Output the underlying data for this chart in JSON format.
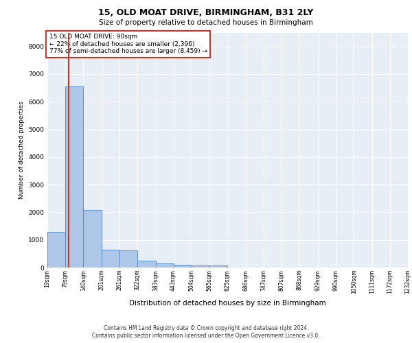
{
  "title1": "15, OLD MOAT DRIVE, BIRMINGHAM, B31 2LY",
  "title2": "Size of property relative to detached houses in Birmingham",
  "xlabel": "Distribution of detached houses by size in Birmingham",
  "ylabel": "Number of detached properties",
  "footnote1": "Contains HM Land Registry data © Crown copyright and database right 2024.",
  "footnote2": "Contains public sector information licensed under the Open Government Licence v3.0.",
  "property_size": 90,
  "property_label": "15 OLD MOAT DRIVE: 90sqm",
  "annotation_left": "← 22% of detached houses are smaller (2,396)",
  "annotation_right": "77% of semi-detached houses are larger (8,459) →",
  "bar_edges": [
    19,
    79,
    140,
    201,
    261,
    322,
    383,
    443,
    504,
    565,
    625,
    686,
    747,
    807,
    868,
    929,
    990,
    1050,
    1111,
    1172,
    1232
  ],
  "bar_heights": [
    1300,
    6550,
    2080,
    650,
    620,
    250,
    140,
    110,
    80,
    80,
    0,
    0,
    0,
    0,
    0,
    0,
    0,
    0,
    0,
    0
  ],
  "bar_color": "#aec6e8",
  "bar_edge_color": "#5b8fc9",
  "highlight_color": "#c0392b",
  "annotation_box_color": "#c0392b",
  "background_color": "#e8eef5",
  "grid_color": "#ffffff",
  "ylim": [
    0,
    8500
  ],
  "yticks": [
    0,
    1000,
    2000,
    3000,
    4000,
    5000,
    6000,
    7000,
    8000
  ]
}
